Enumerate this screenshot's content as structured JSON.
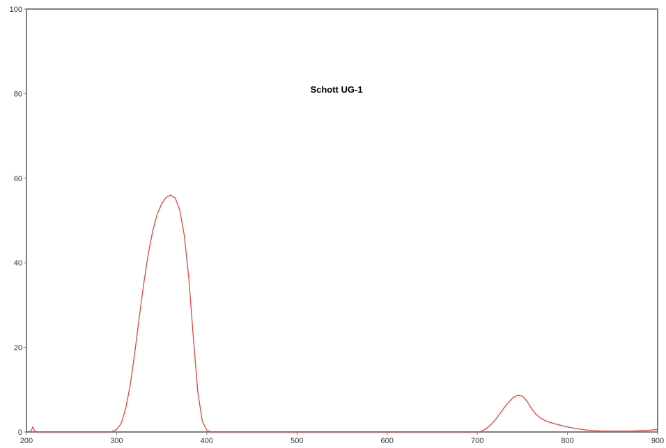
{
  "chart_data": {
    "type": "line",
    "title": "Schott UG-1",
    "xlabel": "",
    "ylabel": "",
    "xlim": [
      200,
      900
    ],
    "ylim": [
      0,
      100
    ],
    "x_ticks": [
      200,
      300,
      400,
      500,
      600,
      700,
      800,
      900
    ],
    "y_ticks": [
      0,
      20,
      40,
      60,
      80,
      100
    ],
    "grid": false,
    "legend": "none",
    "series": [
      {
        "color": "#e8413c",
        "points": [
          [
            200,
            0.0
          ],
          [
            205,
            0.2
          ],
          [
            207,
            1.2
          ],
          [
            209,
            0.2
          ],
          [
            212,
            0.0
          ],
          [
            250,
            0.0
          ],
          [
            290,
            0.0
          ],
          [
            295,
            0.1
          ],
          [
            300,
            0.6
          ],
          [
            305,
            2.0
          ],
          [
            310,
            5.5
          ],
          [
            315,
            11.0
          ],
          [
            320,
            18.5
          ],
          [
            325,
            27.0
          ],
          [
            330,
            35.0
          ],
          [
            335,
            42.0
          ],
          [
            340,
            47.5
          ],
          [
            345,
            51.5
          ],
          [
            350,
            54.0
          ],
          [
            355,
            55.5
          ],
          [
            360,
            56.0
          ],
          [
            365,
            55.3
          ],
          [
            370,
            52.5
          ],
          [
            375,
            46.5
          ],
          [
            380,
            36.5
          ],
          [
            385,
            22.5
          ],
          [
            390,
            9.5
          ],
          [
            395,
            2.5
          ],
          [
            400,
            0.4
          ],
          [
            405,
            0.0
          ],
          [
            500,
            0.0
          ],
          [
            600,
            0.0
          ],
          [
            700,
            0.0
          ],
          [
            705,
            0.2
          ],
          [
            710,
            0.8
          ],
          [
            715,
            1.7
          ],
          [
            720,
            2.9
          ],
          [
            725,
            4.3
          ],
          [
            730,
            5.8
          ],
          [
            735,
            7.1
          ],
          [
            740,
            8.2
          ],
          [
            745,
            8.7
          ],
          [
            750,
            8.5
          ],
          [
            755,
            7.3
          ],
          [
            760,
            5.6
          ],
          [
            765,
            4.2
          ],
          [
            770,
            3.3
          ],
          [
            775,
            2.7
          ],
          [
            780,
            2.3
          ],
          [
            790,
            1.7
          ],
          [
            800,
            1.2
          ],
          [
            810,
            0.8
          ],
          [
            820,
            0.5
          ],
          [
            830,
            0.3
          ],
          [
            840,
            0.2
          ],
          [
            850,
            0.2
          ],
          [
            860,
            0.2
          ],
          [
            870,
            0.2
          ],
          [
            880,
            0.3
          ],
          [
            890,
            0.4
          ],
          [
            900,
            0.6
          ]
        ]
      }
    ]
  }
}
